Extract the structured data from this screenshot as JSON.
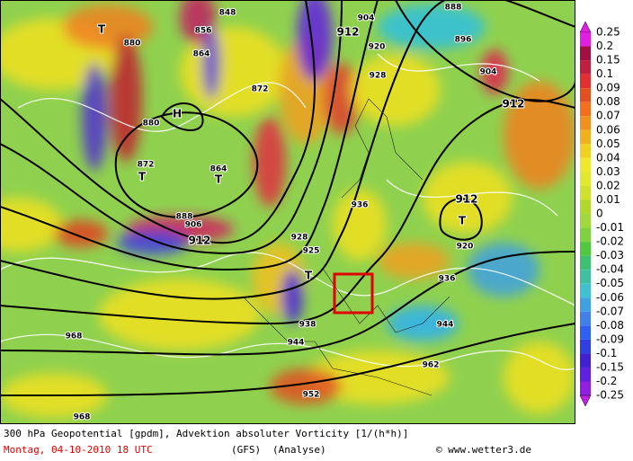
{
  "map": {
    "colorbar_labels": [
      "0.25",
      "0.2",
      "0.15",
      "0.1",
      "0.09",
      "0.08",
      "0.07",
      "0.06",
      "0.05",
      "0.04",
      "0.03",
      "0.02",
      "0.01",
      "0",
      "-0.01",
      "-0.02",
      "-0.03",
      "-0.04",
      "-0.05",
      "-0.06",
      "-0.07",
      "-0.08",
      "-0.09",
      "-0.1",
      "-0.15",
      "-0.2",
      "-0.25"
    ],
    "labels": [
      "T",
      "H",
      "T",
      "T",
      "T",
      "T",
      "912",
      "912",
      "912",
      "912",
      "904",
      "904",
      "896",
      "888",
      "880",
      "880",
      "872",
      "872",
      "864",
      "864",
      "856",
      "848",
      "928",
      "920",
      "920",
      "936",
      "936",
      "944",
      "944",
      "952",
      "962",
      "968",
      "968",
      "938",
      "925",
      "928",
      "906",
      "888"
    ]
  },
  "footer": {
    "title": "300 hPa Geopotential [gpdm], Advektion absoluter Vorticity [1/(h*h)]",
    "date": "Montag, 04-10-2010   18 UTC",
    "model": "(GFS)",
    "run": "(Analyse)",
    "credit": "© www.wetter3.de"
  }
}
